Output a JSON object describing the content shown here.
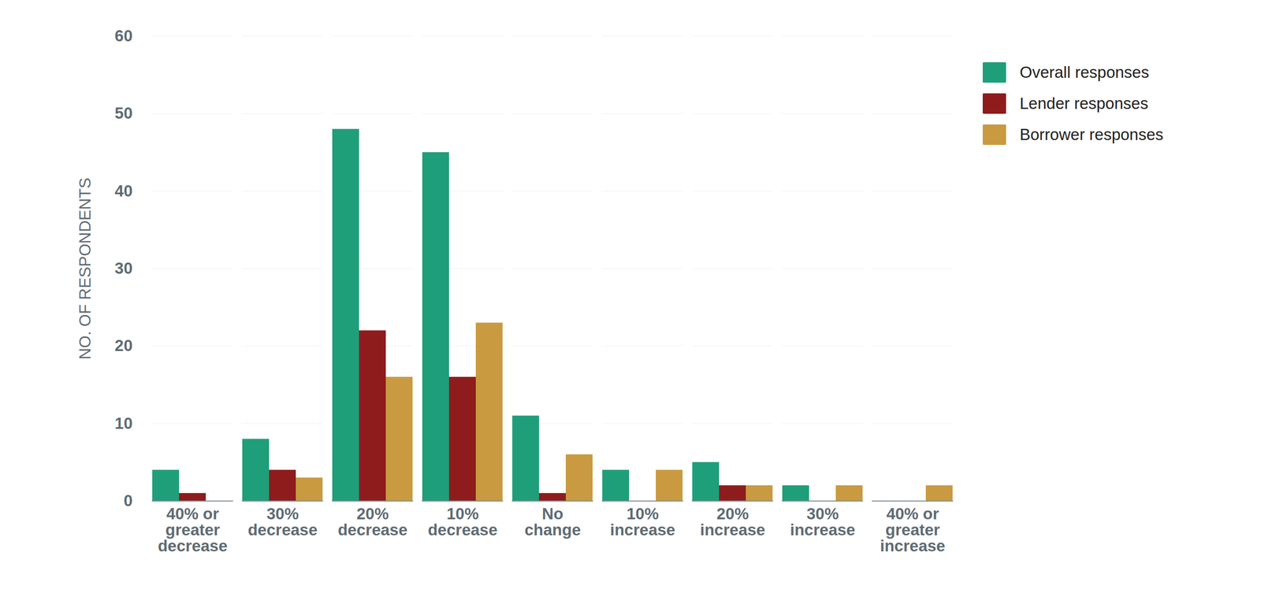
{
  "chart_data": {
    "type": "bar",
    "categories": [
      "40% or greater decrease",
      "30% decrease",
      "20% decrease",
      "10% decrease",
      "No change",
      "10% increase",
      "20% increase",
      "30% increase",
      "40% or greater increase"
    ],
    "series": [
      {
        "name": "Overall responses",
        "color": "#1f9e7a",
        "values": [
          4,
          8,
          48,
          45,
          11,
          4,
          5,
          2,
          0
        ]
      },
      {
        "name": "Lender responses",
        "color": "#8e1c1c",
        "values": [
          1,
          4,
          22,
          16,
          1,
          0,
          2,
          0,
          0
        ]
      },
      {
        "name": "Borrower responses",
        "color": "#c99a40",
        "values": [
          0,
          3,
          16,
          23,
          6,
          4,
          2,
          2,
          2
        ]
      }
    ],
    "y_label": "NO. OF RESPONDENTS",
    "ylim": [
      0,
      60
    ],
    "yticks": [
      0,
      10,
      20,
      30,
      40,
      50,
      60
    ],
    "grid": true,
    "legend": "right"
  }
}
